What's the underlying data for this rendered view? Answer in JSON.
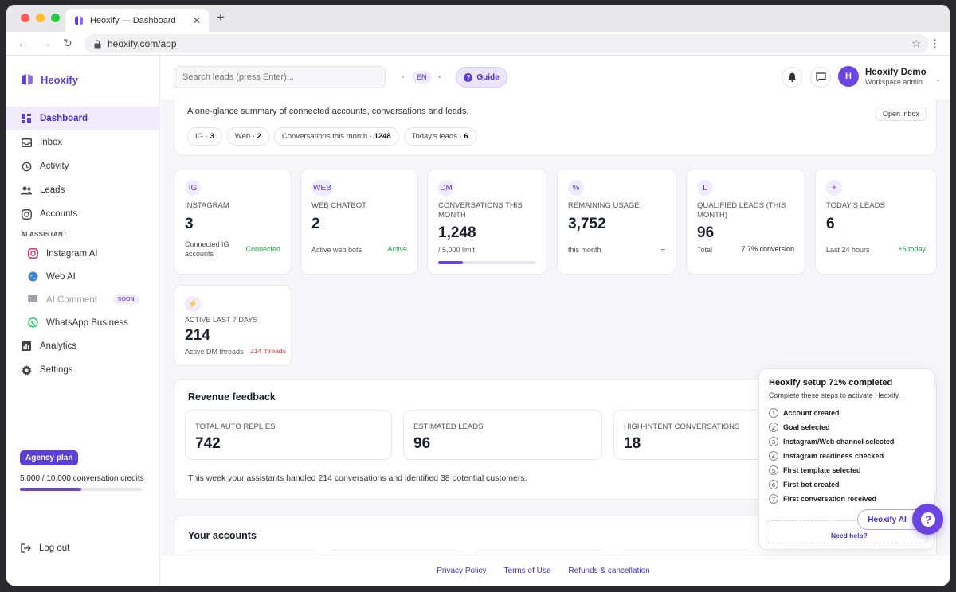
{
  "browser": {
    "tab_title": "Heoxify — Dashboard",
    "url": "heoxify.com/app"
  },
  "brand": {
    "name": "Heoxify",
    "accent": "#5b3fd6"
  },
  "sidebar": {
    "items": [
      {
        "label": "Dashboard",
        "icon": "grid-icon",
        "active": true
      },
      {
        "label": "Inbox",
        "icon": "inbox-icon"
      },
      {
        "label": "Activity",
        "icon": "history-icon"
      },
      {
        "label": "Leads",
        "icon": "users-icon"
      },
      {
        "label": "Accounts",
        "icon": "instagram-icon"
      }
    ],
    "ai_section": "AI ASSISTANT",
    "ai_items": [
      {
        "label": "Instagram AI",
        "icon": "instagram-icon"
      },
      {
        "label": "Web AI",
        "icon": "globe-icon"
      },
      {
        "label": "AI Comment",
        "icon": "comment-icon",
        "badge": "SOON"
      },
      {
        "label": "WhatsApp Business",
        "icon": "whatsapp-icon"
      }
    ],
    "bottom_items": [
      {
        "label": "Analytics",
        "icon": "chart-icon"
      },
      {
        "label": "Settings",
        "icon": "gear-icon"
      }
    ],
    "plan": {
      "badge": "Agency plan",
      "usage_text": "5,000 / 10,000 conversation credits",
      "usage_fraction": 0.5
    },
    "logout": "Log out"
  },
  "topbar": {
    "search_placeholder": "Search leads (press Enter)...",
    "lang": "EN",
    "guide": "Guide",
    "user_name": "Heoxify Demo",
    "user_role": "Workspace admin",
    "avatar_letter": "H"
  },
  "summary": {
    "text": "A one-glance summary of connected accounts, conversations and leads.",
    "open_inbox": "Open inbox",
    "chips": [
      {
        "label": "IG",
        "value": "3"
      },
      {
        "label": "Web",
        "value": "2"
      },
      {
        "label": "Conversations this month",
        "value": "1248"
      },
      {
        "label": "Today's leads",
        "value": "6"
      }
    ]
  },
  "stats": [
    {
      "badge": "IG",
      "label": "INSTAGRAM",
      "value": "3",
      "sub": "Connected IG accounts",
      "right": "Connected"
    },
    {
      "badge": "WEB",
      "label": "WEB CHATBOT",
      "value": "2",
      "sub": "Active web bots",
      "right": "Active"
    },
    {
      "badge": "DM",
      "label": "CONVERSATIONS THIS MONTH",
      "value": "1,248",
      "sub": "/ 5,000 limit",
      "progress": 0.25
    },
    {
      "badge": "%",
      "label": "REMAINING USAGE",
      "value": "3,752",
      "sub": "this month",
      "right": "–"
    },
    {
      "badge": "L",
      "label": "QUALIFIED LEADS (THIS MONTH)",
      "value": "96",
      "sub": "Total",
      "right": "7.7% conversion"
    },
    {
      "badge": "+",
      "label": "TODAY'S LEADS",
      "value": "6",
      "sub": "Last 24 hours",
      "right": "+6 today"
    },
    {
      "badge": "⚡",
      "label": "ACTIVE LAST 7 DAYS",
      "value": "214",
      "sub": "Active DM threads",
      "right": "214 threads"
    }
  ],
  "revenue": {
    "title": "Revenue feedback",
    "metrics": [
      {
        "label": "TOTAL AUTO REPLIES",
        "value": "742"
      },
      {
        "label": "ESTIMATED LEADS",
        "value": "96"
      },
      {
        "label": "HIGH-INTENT CONVERSATIONS",
        "value": "18"
      }
    ],
    "footer": "This week your assistants handled 214 conversations and identified 38 potential customers."
  },
  "accounts": {
    "title": "Your accounts"
  },
  "footer": {
    "links": [
      "Privacy Policy",
      "Terms of Use",
      "Refunds & cancellation"
    ]
  },
  "setup": {
    "title": "Heoxify setup 71% completed",
    "subtitle": "Complete these steps to activate Heoxify.",
    "steps": [
      "Account created",
      "Goal selected",
      "Instagram/Web channel selected",
      "Instagram readiness checked",
      "First template selected",
      "First bot created",
      "First conversation received"
    ],
    "need_help": "Need help?",
    "ai_button": "Heoxify AI"
  }
}
